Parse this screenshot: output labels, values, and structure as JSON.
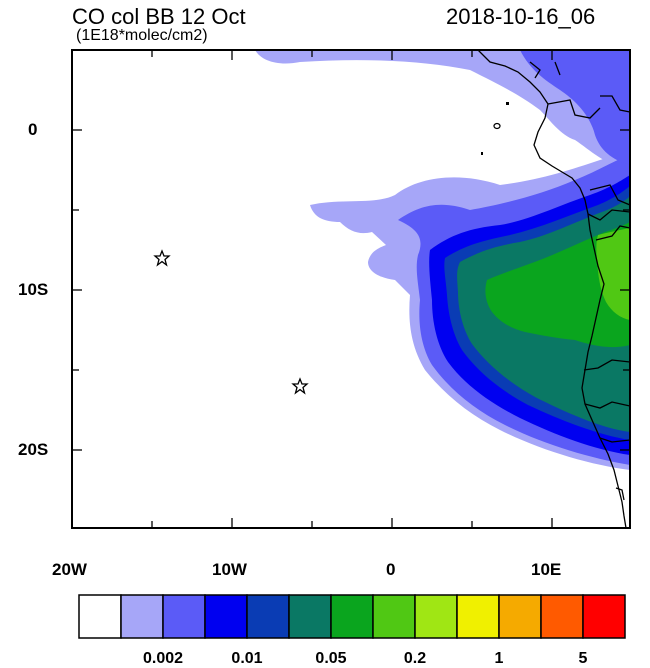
{
  "title": "CO col BB 12 Oct",
  "subtitle": "(1E18*molec/cm2)",
  "timestamp": "2018-10-16_06",
  "axes": {
    "lon_labels": [
      "20W",
      "10W",
      "0",
      "10E"
    ],
    "lat_labels": [
      "0",
      "10S",
      "20S"
    ]
  },
  "colorbar": {
    "colors": [
      "#ffffff",
      "#a6a6f8",
      "#5b5bf7",
      "#0000f0",
      "#0a3cb4",
      "#0a7864",
      "#0aa51e",
      "#50c814",
      "#a0e614",
      "#f0f000",
      "#f5aa00",
      "#ff5a00",
      "#ff0000"
    ],
    "labels": [
      "0.002",
      "0.01",
      "0.05",
      "0.2",
      "1",
      "5"
    ]
  },
  "markers": [
    {
      "name": "star-marker",
      "lon": -14.3,
      "lat": -8.0
    },
    {
      "name": "star-marker",
      "lon": -5.7,
      "lat": -16.0
    }
  ],
  "colors": {
    "ocean": "#ffffff",
    "frame": "#000000"
  }
}
